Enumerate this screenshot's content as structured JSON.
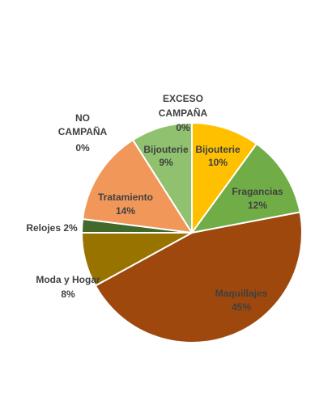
{
  "chart_data": {
    "type": "pie",
    "title": "",
    "slices": [
      {
        "label": "Bijouterie",
        "value": 10,
        "display": "10%",
        "color": "#ffc000"
      },
      {
        "label": "Fragancias",
        "value": 12,
        "display": "12%",
        "color": "#70ad47"
      },
      {
        "label": "Maquillajes",
        "value": 45,
        "display": "45%",
        "color": "#9e480e"
      },
      {
        "label": "Moda y Hogar",
        "value": 8,
        "display": "8%",
        "color": "#997300"
      },
      {
        "label": "Relojes",
        "value": 2,
        "display": "2%",
        "color": "#43682b"
      },
      {
        "label": "Tratamiento",
        "value": 14,
        "display": "14%",
        "color": "#f1975a"
      },
      {
        "label": "Bijouterie",
        "value": 9,
        "display": "9%",
        "color": "#8fc16e"
      },
      {
        "label": "EXCESO CAMPAÑA",
        "value": 0,
        "display": "0%",
        "color": "#a9d18e"
      },
      {
        "label": "NO CAMPAÑA",
        "value": 0,
        "display": "0%",
        "color": "#d9d9d9"
      }
    ]
  },
  "labels": {
    "bijouterie_10": {
      "line1": "Bijouterie",
      "line2": "10%"
    },
    "fragancias": {
      "line1": "Fragancias",
      "line2": "12%"
    },
    "maquillajes": {
      "line1": "Maquillajes",
      "line2": "45%"
    },
    "moda_hogar": {
      "line1": "Moda y Hogar",
      "line2": "8%"
    },
    "relojes": {
      "line1": "Relojes 2%"
    },
    "tratamiento": {
      "line1": "Tratamiento",
      "line2": "14%"
    },
    "bijouterie_9": {
      "line1": "Bijouterie",
      "line2": "9%"
    },
    "exceso_campana": {
      "line1": "EXCESO",
      "line2": "CAMPAÑA",
      "line3": "0%"
    },
    "no_campana": {
      "line1": "NO",
      "line2": "CAMPAÑA",
      "line3": "0%"
    }
  }
}
